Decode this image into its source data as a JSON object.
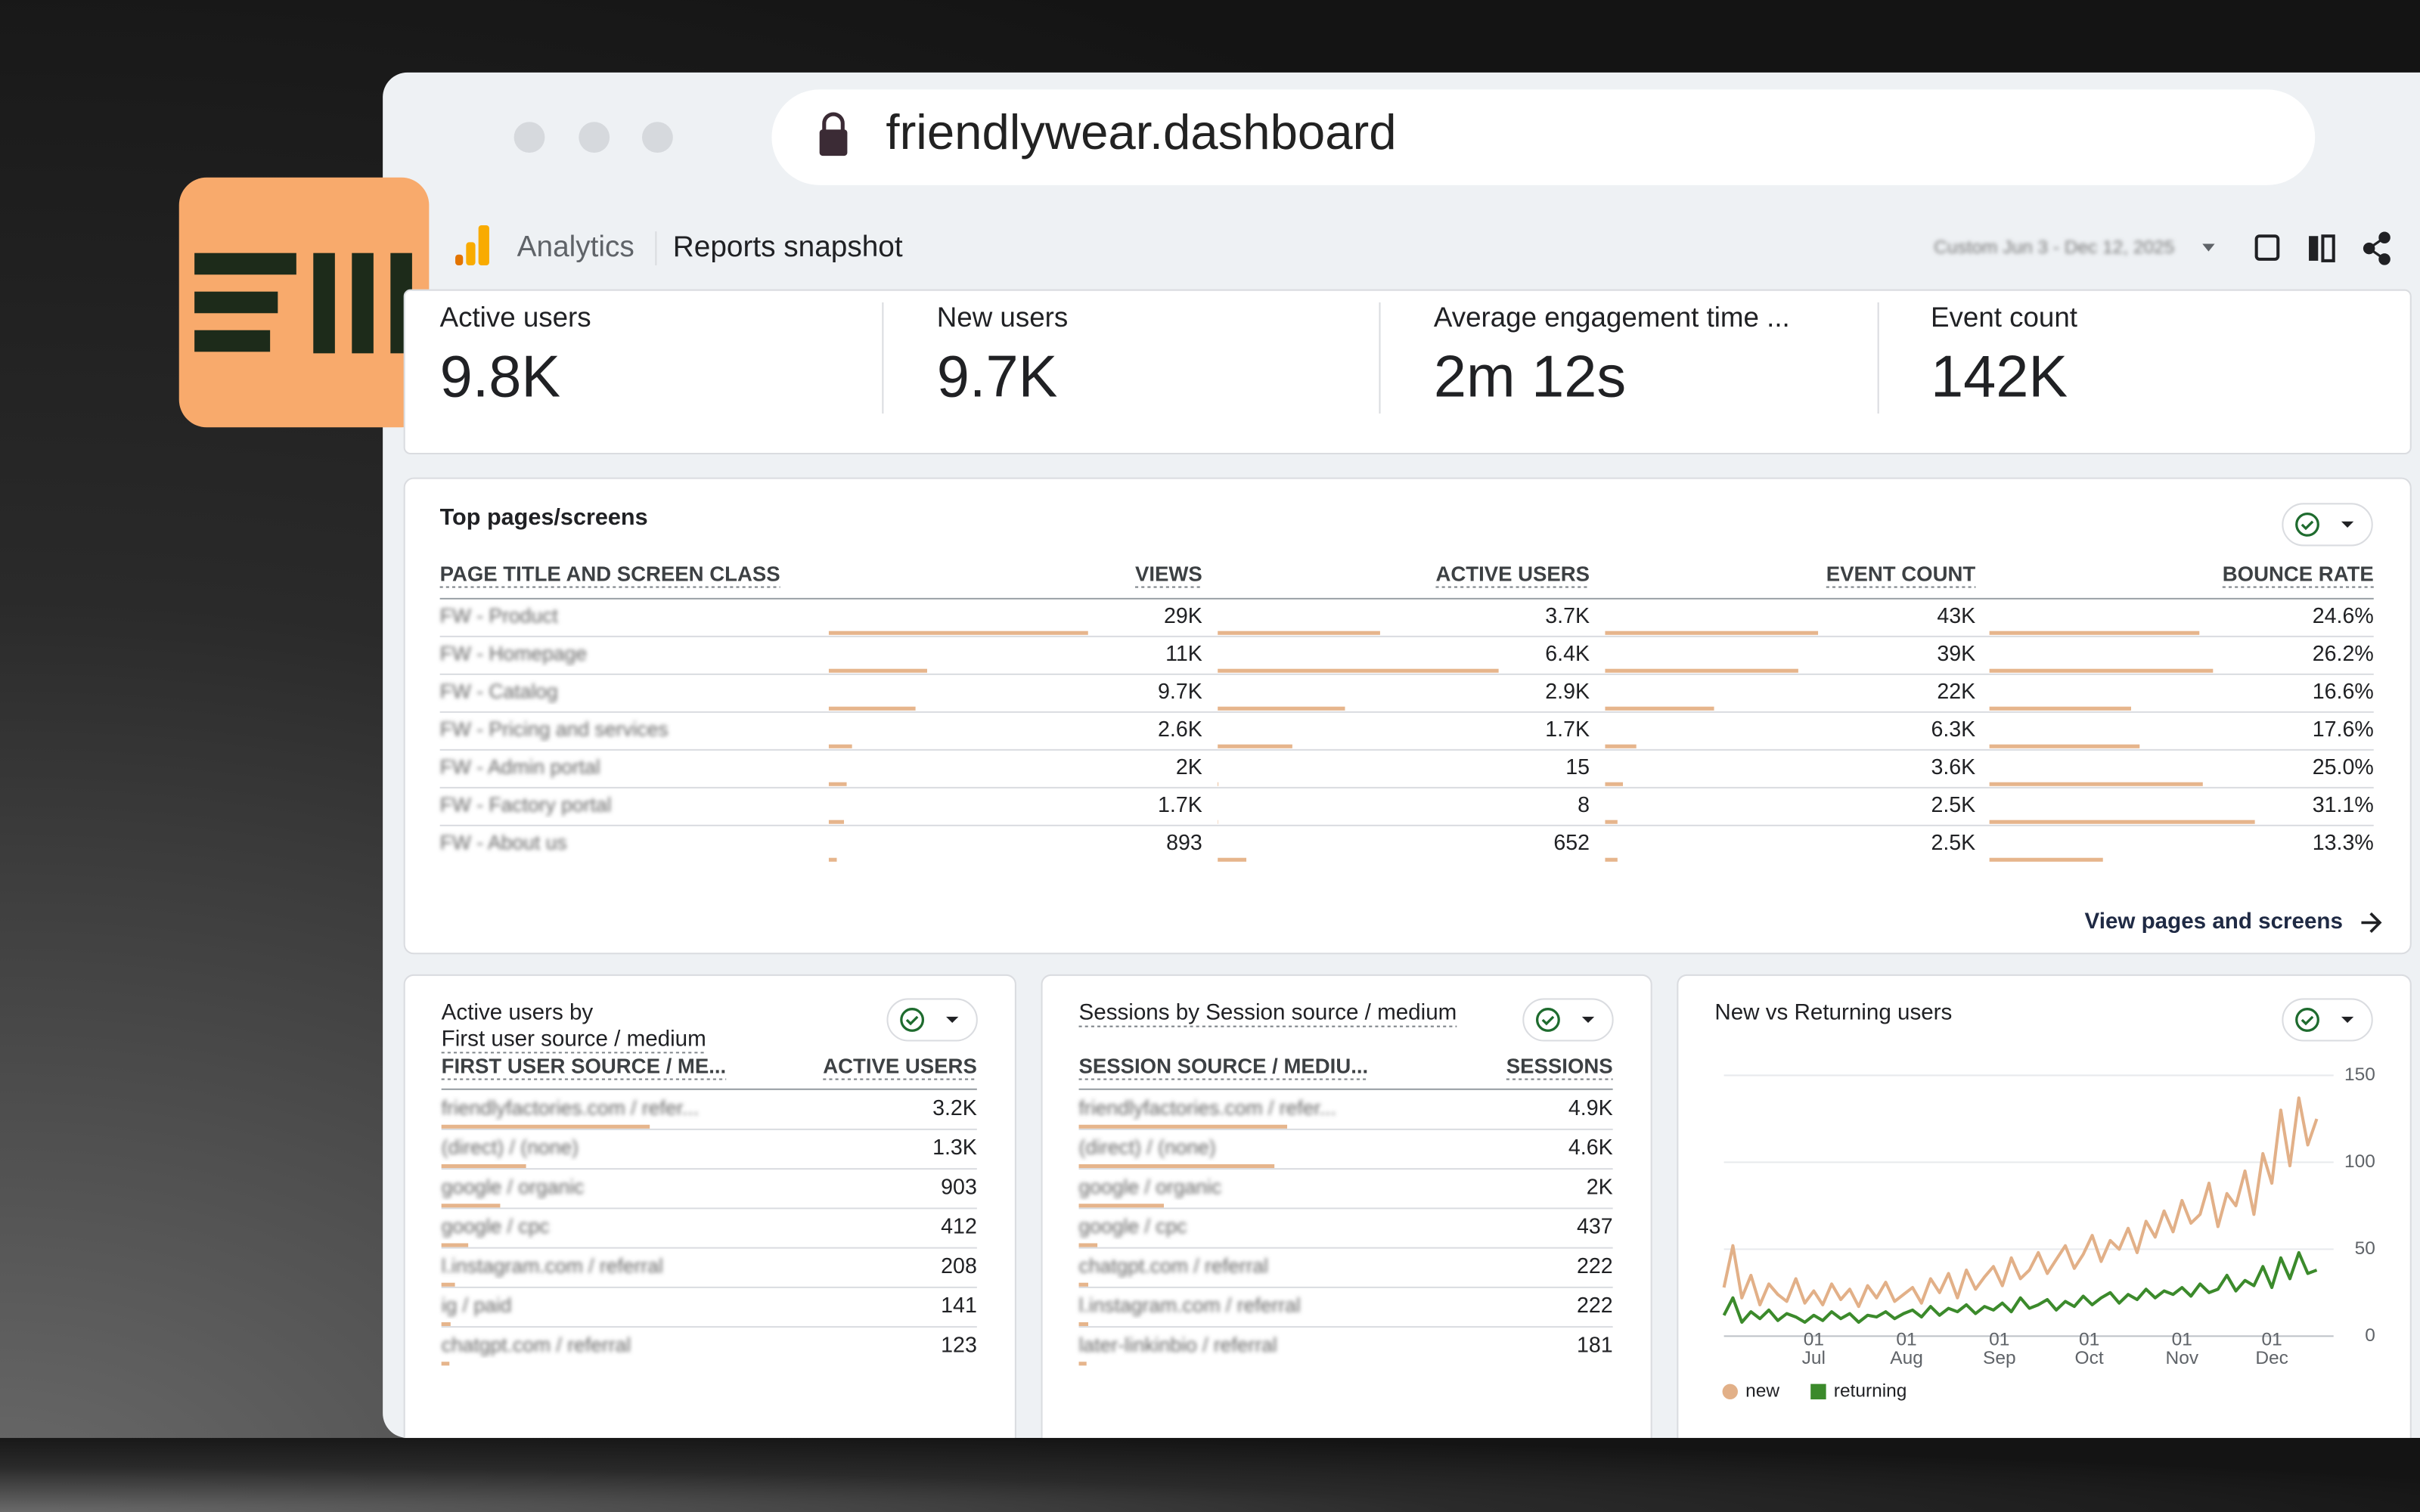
{
  "browser": {
    "url": "friendlywear.dashboard"
  },
  "header": {
    "product": "Analytics",
    "page": "Reports snapshot",
    "date_range": "Custom  Jun 3 - Dec 12, 2025"
  },
  "metrics": [
    {
      "label": "Active users",
      "value": "9.8K"
    },
    {
      "label": "New users",
      "value": "9.7K"
    },
    {
      "label": "Average engagement time ...",
      "value": "2m 12s"
    },
    {
      "label": "Event count",
      "value": "142K"
    }
  ],
  "top_pages": {
    "title": "Top pages/screens",
    "columns": [
      "PAGE TITLE AND SCREEN CLASS",
      "VIEWS",
      "ACTIVE USERS",
      "EVENT COUNT",
      "BOUNCE RATE"
    ],
    "rows": [
      {
        "page": "FW - Product",
        "cells": [
          {
            "value": 29000,
            "label": "29K"
          },
          {
            "value": 3700,
            "label": "3.7K"
          },
          {
            "value": 43000,
            "label": "43K"
          },
          {
            "value": 24.6,
            "label": "24.6%"
          }
        ]
      },
      {
        "page": "FW - Homepage",
        "cells": [
          {
            "value": 11000,
            "label": "11K"
          },
          {
            "value": 6400,
            "label": "6.4K"
          },
          {
            "value": 39000,
            "label": "39K"
          },
          {
            "value": 26.2,
            "label": "26.2%"
          }
        ]
      },
      {
        "page": "FW - Catalog",
        "cells": [
          {
            "value": 9700,
            "label": "9.7K"
          },
          {
            "value": 2900,
            "label": "2.9K"
          },
          {
            "value": 22000,
            "label": "22K"
          },
          {
            "value": 16.6,
            "label": "16.6%"
          }
        ]
      },
      {
        "page": "FW - Pricing and services",
        "cells": [
          {
            "value": 2600,
            "label": "2.6K"
          },
          {
            "value": 1700,
            "label": "1.7K"
          },
          {
            "value": 6300,
            "label": "6.3K"
          },
          {
            "value": 17.6,
            "label": "17.6%"
          }
        ]
      },
      {
        "page": "FW - Admin portal",
        "cells": [
          {
            "value": 2000,
            "label": "2K"
          },
          15,
          {
            "value": 3600,
            "label": "3.6K"
          },
          {
            "value": 25.0,
            "label": "25.0%"
          }
        ]
      },
      {
        "page": "FW - Factory portal",
        "cells": [
          {
            "value": 1700,
            "label": "1.7K"
          },
          8,
          {
            "value": 2500,
            "label": "2.5K"
          },
          {
            "value": 31.1,
            "label": "31.1%"
          }
        ]
      },
      {
        "page": "FW - About us",
        "cells": [
          893,
          652,
          {
            "value": 2500,
            "label": "2.5K"
          },
          {
            "value": 13.3,
            "label": "13.3%"
          }
        ]
      }
    ],
    "link": "View pages and screens"
  },
  "source_tables": [
    {
      "title": [
        "Active users by",
        "First user source / medium"
      ],
      "columns": [
        "FIRST USER SOURCE / ME...",
        "ACTIVE USERS"
      ],
      "rows": [
        {
          "source": "friendlyfactories.com / refer...",
          "value": {
            "value": 3200,
            "label": "3.2K"
          }
        },
        {
          "source": "(direct) / (none)",
          "value": {
            "value": 1300,
            "label": "1.3K"
          }
        },
        {
          "source": "google / organic",
          "value": 903
        },
        {
          "source": "google / cpc",
          "value": 412
        },
        {
          "source": "l.instagram.com / referral",
          "value": 208
        },
        {
          "source": "ig / paid",
          "value": 141
        },
        {
          "source": "chatgpt.com / referral",
          "value": 123
        }
      ]
    },
    {
      "title": [
        "Sessions by Session source / medium"
      ],
      "columns": [
        "SESSION SOURCE / MEDIU...",
        "SESSIONS"
      ],
      "rows": [
        {
          "source": "friendlyfactories.com / refer...",
          "value": {
            "value": 4900,
            "label": "4.9K"
          }
        },
        {
          "source": "(direct) / (none)",
          "value": {
            "value": 4600,
            "label": "4.6K"
          }
        },
        {
          "source": "google / organic",
          "value": {
            "value": 2000,
            "label": "2K"
          }
        },
        {
          "source": "google / cpc",
          "value": 437
        },
        {
          "source": "chatgpt.com / referral",
          "value": 222
        },
        {
          "source": "l.instagram.com / referral",
          "value": 222
        },
        {
          "source": "later-linkinbio / referral",
          "value": 181
        }
      ]
    }
  ],
  "chart_data": {
    "type": "line",
    "title": "New vs Returning users",
    "x": [
      "01 Jun",
      "04 Jun",
      "07 Jun",
      "10 Jun",
      "13 Jun",
      "16 Jun",
      "19 Jun",
      "22 Jun",
      "25 Jun",
      "28 Jun",
      "01 Jul",
      "04 Jul",
      "07 Jul",
      "10 Jul",
      "13 Jul",
      "16 Jul",
      "19 Jul",
      "22 Jul",
      "25 Jul",
      "28 Jul",
      "31 Jul",
      "03 Aug",
      "06 Aug",
      "09 Aug",
      "12 Aug",
      "15 Aug",
      "18 Aug",
      "21 Aug",
      "24 Aug",
      "27 Aug",
      "30 Aug",
      "02 Sep",
      "05 Sep",
      "08 Sep",
      "11 Sep",
      "14 Sep",
      "17 Sep",
      "20 Sep",
      "23 Sep",
      "26 Sep",
      "29 Sep",
      "02 Oct",
      "05 Oct",
      "08 Oct",
      "11 Oct",
      "14 Oct",
      "17 Oct",
      "20 Oct",
      "23 Oct",
      "26 Oct",
      "29 Oct",
      "01 Nov",
      "04 Nov",
      "07 Nov",
      "10 Nov",
      "13 Nov",
      "16 Nov",
      "19 Nov",
      "22 Nov",
      "25 Nov",
      "28 Nov",
      "01 Dec",
      "04 Dec",
      "07 Dec",
      "10 Dec",
      "13 Dec",
      "16 Dec"
    ],
    "series": [
      {
        "name": "new",
        "color": "#e2b088",
        "values": [
          28,
          52,
          22,
          35,
          18,
          30,
          24,
          20,
          33,
          19,
          26,
          18,
          30,
          21,
          27,
          17,
          29,
          22,
          31,
          20,
          24,
          28,
          19,
          33,
          25,
          36,
          22,
          38,
          27,
          34,
          40,
          29,
          45,
          33,
          38,
          48,
          36,
          44,
          52,
          39,
          47,
          58,
          43,
          55,
          50,
          62,
          48,
          66,
          57,
          72,
          60,
          78,
          65,
          70,
          88,
          63,
          82,
          75,
          95,
          70,
          105,
          88,
          130,
          98,
          137,
          110,
          125
        ]
      },
      {
        "name": "returning",
        "color": "#3b8a2b",
        "values": [
          12,
          22,
          8,
          14,
          10,
          15,
          9,
          13,
          11,
          8,
          12,
          9,
          14,
          10,
          13,
          8,
          12,
          11,
          14,
          10,
          13,
          15,
          11,
          17,
          12,
          16,
          14,
          18,
          13,
          17,
          15,
          19,
          14,
          22,
          16,
          18,
          21,
          15,
          20,
          17,
          23,
          18,
          22,
          25,
          19,
          24,
          21,
          27,
          22,
          26,
          24,
          28,
          23,
          30,
          25,
          27,
          35,
          26,
          32,
          29,
          40,
          28,
          45,
          33,
          48,
          36,
          38
        ]
      }
    ],
    "xlim": [
      "01 Jun",
      "18 Dec"
    ],
    "xticks": [
      "01 Jul",
      "01 Aug",
      "01 Sep",
      "01 Oct",
      "01 Nov",
      "01 Dec"
    ],
    "ylim": [
      0,
      150
    ],
    "yticks": [
      0,
      50,
      100,
      150
    ],
    "grid": true
  }
}
